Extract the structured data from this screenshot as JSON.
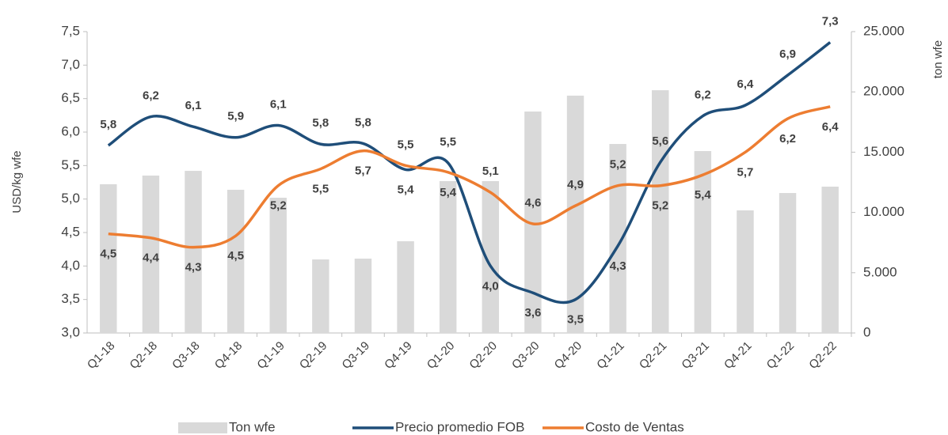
{
  "chart_data": {
    "type": "bar-line",
    "y_label": "USD/kg wfe",
    "y2_label": "ton wfe",
    "categories": [
      "Q1-18",
      "Q2-18",
      "Q3-18",
      "Q4-18",
      "Q1-19",
      "Q2-19",
      "Q3-19",
      "Q4-19",
      "Q1-20",
      "Q2-20",
      "Q3-20",
      "Q4-20",
      "Q1-21",
      "Q2-21",
      "Q3-21",
      "Q4-21",
      "Q1-22",
      "Q2-22"
    ],
    "ylim": [
      3.0,
      7.5
    ],
    "yticks": [
      {
        "value": 3.0,
        "label": "3,0"
      },
      {
        "value": 3.5,
        "label": "3,5"
      },
      {
        "value": 4.0,
        "label": "4,0"
      },
      {
        "value": 4.5,
        "label": "4,5"
      },
      {
        "value": 5.0,
        "label": "5,0"
      },
      {
        "value": 5.5,
        "label": "5,5"
      },
      {
        "value": 6.0,
        "label": "6,0"
      },
      {
        "value": 6.5,
        "label": "6,5"
      },
      {
        "value": 7.0,
        "label": "7,0"
      },
      {
        "value": 7.5,
        "label": "7,5"
      }
    ],
    "y2lim": [
      0,
      25000
    ],
    "y2ticks": [
      0,
      {
        "value": 5000,
        "label": "5.000"
      },
      {
        "value": 10000,
        "label": "10.000"
      },
      {
        "value": 15000,
        "label": "15.000"
      },
      {
        "value": 20000,
        "label": "20.000"
      },
      {
        "value": 25000,
        "label": "25.000"
      }
    ],
    "series": [
      {
        "name": "Ton wfe",
        "type": "bar",
        "axis": "y2",
        "color": "#d9d9d9",
        "values": [
          12340,
          13060,
          13450,
          11880,
          11220,
          6100,
          6170,
          7610,
          12600,
          12600,
          18370,
          19690,
          15680,
          20140,
          15090,
          10170,
          11610,
          12140
        ]
      },
      {
        "name": "Precio promedio FOB",
        "type": "line",
        "color": "#1f4e79",
        "values": [
          5.8,
          6.23,
          6.08,
          5.92,
          6.1,
          5.82,
          5.83,
          5.44,
          5.54,
          4.0,
          3.6,
          3.5,
          4.3,
          5.55,
          6.24,
          6.4,
          6.85,
          7.34
        ],
        "value_labels": [
          "5,8",
          "6,2",
          "6,1",
          "5,9",
          "6,1",
          "5,8",
          "5,8",
          "5,4",
          "5,5",
          "4,0",
          "3,6",
          "3,5",
          "4,3",
          "5,6",
          "6,2",
          "6,4",
          "6,9",
          "7,3"
        ]
      },
      {
        "name": "Costo de Ventas",
        "type": "line",
        "color": "#ed7d31",
        "values": [
          4.48,
          4.42,
          4.28,
          4.45,
          5.2,
          5.45,
          5.72,
          5.5,
          5.4,
          5.1,
          4.63,
          4.9,
          5.2,
          5.2,
          5.36,
          5.7,
          6.2,
          6.38
        ],
        "value_labels": [
          "4,5",
          "4,4",
          "4,3",
          "4,5",
          "5,2",
          "5,5",
          "5,7",
          "5,5",
          "5,4",
          "5,1",
          "4,6",
          "4,9",
          "5,2",
          "5,2",
          "5,4",
          "5,7",
          "6,2",
          "6,4"
        ]
      }
    ]
  }
}
